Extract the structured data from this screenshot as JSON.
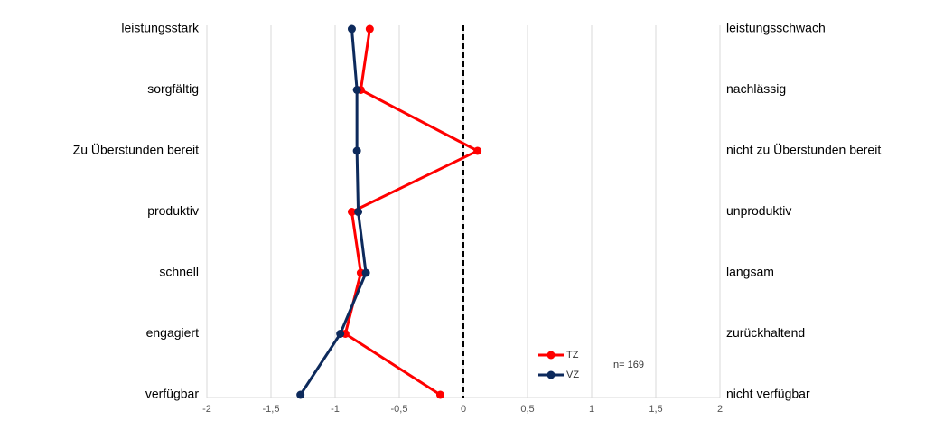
{
  "chart_data": {
    "type": "line",
    "categories": [
      "leistungsstark",
      "sorgfältig",
      "Zu Überstunden bereit",
      "produktiv",
      "schnell",
      "engagiert",
      "verfügbar"
    ],
    "categories_right": [
      "leistungsschwach",
      "nachlässig",
      "nicht zu Überstunden bereit",
      "unproduktiv",
      "langsam",
      "zurückhaltend",
      "nicht verfügbar"
    ],
    "series": [
      {
        "name": "TZ",
        "color": "#ff0000",
        "values": [
          -0.73,
          -0.8,
          0.11,
          -0.87,
          -0.8,
          -0.92,
          -0.18
        ]
      },
      {
        "name": "VZ",
        "color": "#0d2a5c",
        "values": [
          -0.87,
          -0.83,
          -0.83,
          -0.82,
          -0.76,
          -0.96,
          -1.27
        ]
      }
    ],
    "xlim": [
      -2,
      2
    ],
    "xticks": [
      -2,
      {
        "value": -1.5,
        "label": "-1,5"
      },
      -1,
      {
        "value": -0.5,
        "label": "-0,5"
      },
      0,
      {
        "value": 0.5,
        "label": "0,5"
      },
      1,
      {
        "value": 1.5,
        "label": "1,5"
      },
      2
    ],
    "reference_x": 0,
    "grid": true,
    "annotation": "n= 169"
  }
}
